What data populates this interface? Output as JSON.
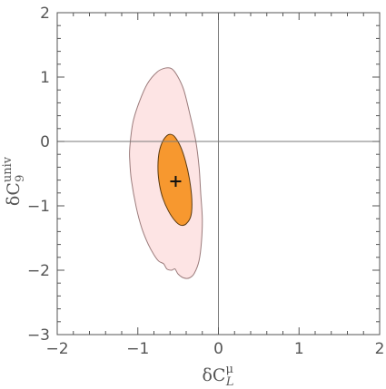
{
  "chart_data": {
    "type": "contour",
    "title": "",
    "xlabel": {
      "base": "δC",
      "sub": "L",
      "sup": "μ"
    },
    "ylabel": {
      "base": "δC",
      "sub": "9",
      "sup": "univ"
    },
    "xlim": [
      -2,
      2
    ],
    "ylim": [
      -3,
      2
    ],
    "xticks": [
      -2,
      -1,
      0,
      1,
      2
    ],
    "yticks": [
      -3,
      -2,
      -1,
      0,
      1,
      2
    ],
    "xtick_labels": [
      "−2",
      "−1",
      "0",
      "1",
      "2"
    ],
    "ytick_labels": [
      "−3",
      "−2",
      "−1",
      "0",
      "1",
      "2"
    ],
    "grid": false,
    "reference_lines": {
      "x": 0,
      "y": 0
    },
    "best_fit": {
      "x": -0.53,
      "y": -0.62
    },
    "regions": [
      {
        "level": "outer",
        "fill": "#fde4e4",
        "stroke": "#9b7b7b",
        "points": [
          [
            -1.1,
            -0.1
          ],
          [
            -1.06,
            0.3
          ],
          [
            -0.98,
            0.62
          ],
          [
            -0.88,
            0.9
          ],
          [
            -0.76,
            1.08
          ],
          [
            -0.66,
            1.14
          ],
          [
            -0.58,
            1.13
          ],
          [
            -0.51,
            1.02
          ],
          [
            -0.43,
            0.8
          ],
          [
            -0.35,
            0.4
          ],
          [
            -0.28,
            0.0
          ],
          [
            -0.24,
            -0.4
          ],
          [
            -0.22,
            -0.8
          ],
          [
            -0.2,
            -1.2
          ],
          [
            -0.21,
            -1.55
          ],
          [
            -0.24,
            -1.85
          ],
          [
            -0.3,
            -2.05
          ],
          [
            -0.36,
            -2.12
          ],
          [
            -0.43,
            -2.12
          ],
          [
            -0.5,
            -2.06
          ],
          [
            -0.54,
            -1.98
          ],
          [
            -0.58,
            -2.0
          ],
          [
            -0.64,
            -1.98
          ],
          [
            -0.68,
            -1.9
          ],
          [
            -0.74,
            -1.86
          ],
          [
            -0.8,
            -1.76
          ],
          [
            -0.87,
            -1.6
          ],
          [
            -0.95,
            -1.35
          ],
          [
            -1.02,
            -1.02
          ],
          [
            -1.08,
            -0.6
          ],
          [
            -1.1,
            -0.3
          ]
        ]
      },
      {
        "level": "inner",
        "fill": "#f7982f",
        "stroke": "#5b3a10",
        "points": [
          [
            -0.75,
            -0.45
          ],
          [
            -0.74,
            -0.2
          ],
          [
            -0.7,
            -0.02
          ],
          [
            -0.64,
            0.09
          ],
          [
            -0.59,
            0.11
          ],
          [
            -0.54,
            0.07
          ],
          [
            -0.47,
            -0.08
          ],
          [
            -0.41,
            -0.3
          ],
          [
            -0.36,
            -0.58
          ],
          [
            -0.33,
            -0.9
          ],
          [
            -0.34,
            -1.15
          ],
          [
            -0.4,
            -1.28
          ],
          [
            -0.47,
            -1.3
          ],
          [
            -0.54,
            -1.23
          ],
          [
            -0.62,
            -1.08
          ],
          [
            -0.69,
            -0.88
          ],
          [
            -0.73,
            -0.68
          ]
        ]
      }
    ]
  }
}
